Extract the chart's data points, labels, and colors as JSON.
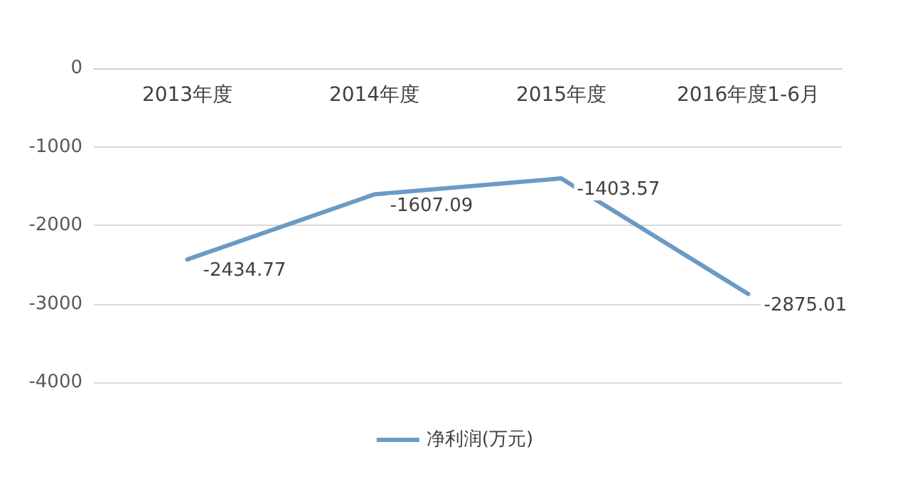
{
  "chart_data": {
    "type": "line",
    "categories": [
      "2013年度",
      "2014年度",
      "2015年度",
      "2016年度1-6月"
    ],
    "series": [
      {
        "name": "净利润(万元)",
        "color": "#6a9bc6",
        "values": [
          -2434.77,
          -1607.09,
          -1403.57,
          -2875.01
        ]
      }
    ],
    "ylim": [
      -4000,
      0
    ],
    "yticks": [
      -4000,
      -3000,
      -2000,
      -1000,
      0
    ],
    "grid": "y",
    "legend": "bottom",
    "data_labels": true,
    "marker": "none",
    "line_style": "solid"
  }
}
